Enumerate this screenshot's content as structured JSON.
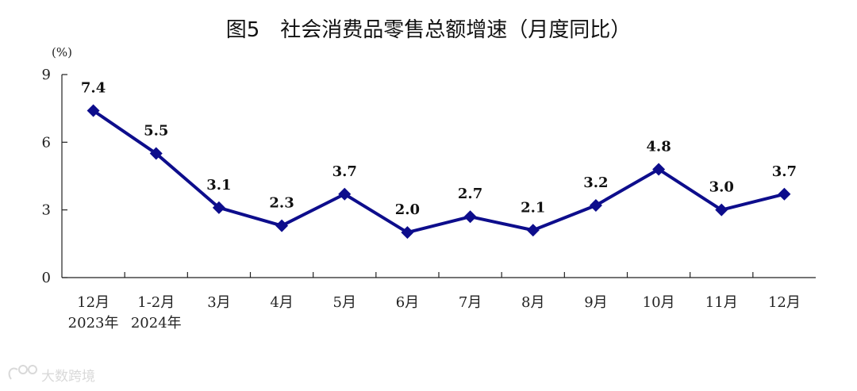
{
  "chart_data": {
    "type": "line",
    "title": "图5　社会消费品零售总额增速（月度同比）",
    "unit": "(%)",
    "categories": [
      [
        "12月",
        "2023年"
      ],
      [
        "1-2月",
        "2024年"
      ],
      [
        "3月"
      ],
      [
        "4月"
      ],
      [
        "5月"
      ],
      [
        "6月"
      ],
      [
        "7月"
      ],
      [
        "8月"
      ],
      [
        "9月"
      ],
      [
        "10月"
      ],
      [
        "11月"
      ],
      [
        "12月"
      ]
    ],
    "series": [
      {
        "values": [
          7.4,
          5.5,
          3.1,
          2.3,
          3.7,
          2.0,
          2.7,
          2.1,
          3.2,
          4.8,
          3.0,
          3.7
        ]
      }
    ],
    "data_labels": [
      "7.4",
      "5.5",
      "3.1",
      "2.3",
      "3.7",
      "2.0",
      "2.7",
      "2.1",
      "3.2",
      "4.8",
      "3.0",
      "3.7"
    ],
    "ylim": [
      0,
      9
    ],
    "yticks": [
      0,
      3,
      6,
      9
    ],
    "grid": false,
    "marker": "diamond",
    "line_color": "#0d0d8c"
  },
  "watermark": {
    "text": "大数跨境"
  }
}
